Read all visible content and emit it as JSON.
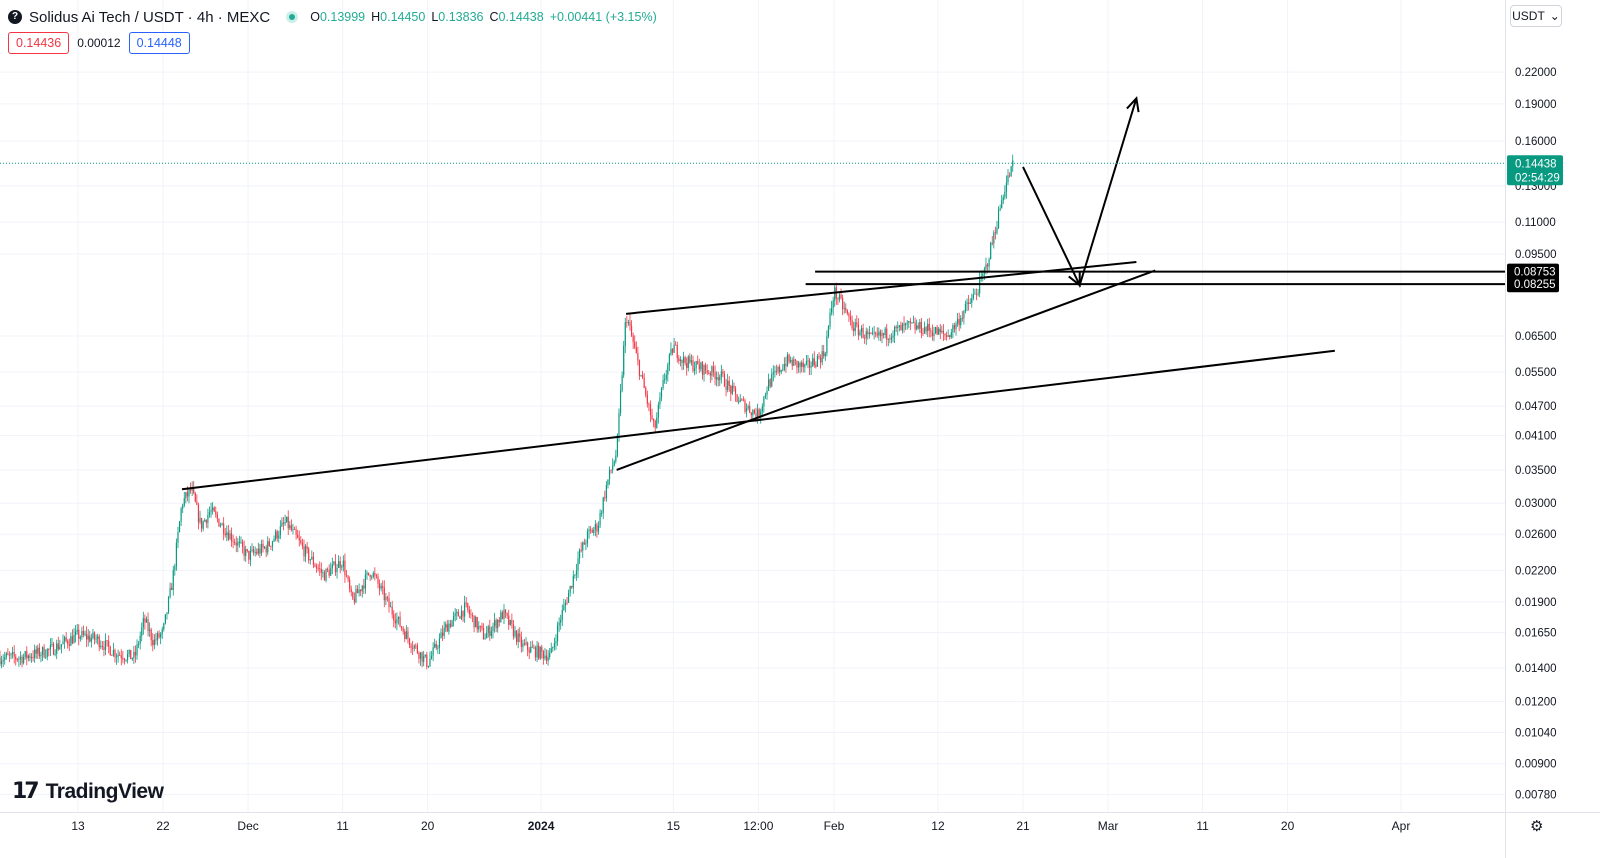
{
  "header": {
    "logo_glyph": "?",
    "symbol": "Solidus Ai Tech / USDT · 4h · MEXC",
    "ohlc": {
      "o_key": "O",
      "o": "0.13999",
      "h_key": "H",
      "h": "0.14450",
      "l_key": "L",
      "l": "0.13836",
      "c_key": "C",
      "c": "0.14438",
      "change": "+0.00441 (+3.15%)"
    },
    "sell_price": "0.14436",
    "spread": "0.00012",
    "buy_price": "0.14448"
  },
  "currency_button": {
    "label": "USDT",
    "icon": "chevron-down-icon"
  },
  "branding": {
    "mark": "17",
    "text": "TradingView"
  },
  "settings_icon": "gear-icon",
  "chart_data": {
    "type": "line",
    "description_type": "candlestick",
    "y_scale": "log",
    "ylim": [
      0.0072,
      0.28
    ],
    "y_ticks": [
      "0.22000",
      "0.19000",
      "0.16000",
      "0.13000",
      "0.11000",
      "0.09500",
      "0.06500",
      "0.05500",
      "0.04700",
      "0.04100",
      "0.03500",
      "0.03000",
      "0.02600",
      "0.02200",
      "0.01900",
      "0.01650",
      "0.01400",
      "0.01200",
      "0.01040",
      "0.00900",
      "0.00780"
    ],
    "x_ticks": [
      "13",
      "22",
      "Dec",
      "11",
      "20",
      "2024",
      "15",
      "12:00",
      "Feb",
      "12",
      "21",
      "Mar",
      "11",
      "20",
      "Apr"
    ],
    "x_tick_bold": [
      "2024"
    ],
    "series": [
      {
        "values": [
          [
            "2023-11-07",
            0.0147
          ],
          [
            "2023-11-10",
            0.0152
          ],
          [
            "2023-11-13",
            0.0163
          ],
          [
            "2023-11-15",
            0.016
          ],
          [
            "2023-11-17",
            0.015
          ],
          [
            "2023-11-19",
            0.0147
          ],
          [
            "2023-11-20",
            0.0175
          ],
          [
            "2023-11-21",
            0.0158
          ],
          [
            "2023-11-22",
            0.0165
          ],
          [
            "2023-11-23",
            0.021
          ],
          [
            "2023-11-24",
            0.03
          ],
          [
            "2023-11-25",
            0.032
          ],
          [
            "2023-11-26",
            0.027
          ],
          [
            "2023-11-27",
            0.029
          ],
          [
            "2023-11-29",
            0.026
          ],
          [
            "2023-12-01",
            0.0235
          ],
          [
            "2023-12-03",
            0.0245
          ],
          [
            "2023-12-05",
            0.0275
          ],
          [
            "2023-12-07",
            0.024
          ],
          [
            "2023-12-09",
            0.0215
          ],
          [
            "2023-12-11",
            0.023
          ],
          [
            "2023-12-12",
            0.019
          ],
          [
            "2023-12-14",
            0.022
          ],
          [
            "2023-12-16",
            0.0185
          ],
          [
            "2023-12-18",
            0.016
          ],
          [
            "2023-12-20",
            0.0143
          ],
          [
            "2023-12-22",
            0.017
          ],
          [
            "2023-12-24",
            0.0185
          ],
          [
            "2023-12-26",
            0.0162
          ],
          [
            "2023-12-28",
            0.018
          ],
          [
            "2023-12-30",
            0.0155
          ],
          [
            "2024-01-01",
            0.015
          ],
          [
            "2024-01-02",
            0.0148
          ],
          [
            "2024-01-03",
            0.0175
          ],
          [
            "2024-01-04",
            0.02
          ],
          [
            "2024-01-05",
            0.0235
          ],
          [
            "2024-01-06",
            0.026
          ],
          [
            "2024-01-07",
            0.027
          ],
          [
            "2024-01-08",
            0.033
          ],
          [
            "2024-01-09",
            0.038
          ],
          [
            "2024-01-10",
            0.072
          ],
          [
            "2024-01-11",
            0.06
          ],
          [
            "2024-01-12",
            0.05
          ],
          [
            "2024-01-13",
            0.042
          ],
          [
            "2024-01-14",
            0.053
          ],
          [
            "2024-01-15",
            0.062
          ],
          [
            "2024-01-16",
            0.058
          ],
          [
            "2024-01-18",
            0.056
          ],
          [
            "2024-01-20",
            0.054
          ],
          [
            "2024-01-22",
            0.048
          ],
          [
            "2024-01-24",
            0.045
          ],
          [
            "2024-01-25",
            0.052
          ],
          [
            "2024-01-27",
            0.058
          ],
          [
            "2024-01-29",
            0.056
          ],
          [
            "2024-01-31",
            0.06
          ],
          [
            "2024-02-01",
            0.08
          ],
          [
            "2024-02-02",
            0.074
          ],
          [
            "2024-02-03",
            0.068
          ],
          [
            "2024-02-05",
            0.064
          ],
          [
            "2024-02-07",
            0.066
          ],
          [
            "2024-02-09",
            0.068
          ],
          [
            "2024-02-11",
            0.067
          ],
          [
            "2024-02-13",
            0.065
          ],
          [
            "2024-02-14",
            0.069
          ],
          [
            "2024-02-15",
            0.074
          ],
          [
            "2024-02-16",
            0.079
          ],
          [
            "2024-02-17",
            0.088
          ],
          [
            "2024-02-18",
            0.105
          ],
          [
            "2024-02-19",
            0.128
          ],
          [
            "2024-02-20",
            0.1444
          ]
        ]
      }
    ],
    "current_price_label": {
      "value": "0.14438",
      "countdown": "02:54:29",
      "color": "#089981"
    },
    "levels": [
      {
        "value": "0.08753"
      },
      {
        "value": "0.08255"
      }
    ],
    "annotations": {
      "trendlines": [
        {
          "from": [
            "2023-11-24",
            0.032
          ],
          "to": [
            "2024-03-25",
            0.0607
          ]
        },
        {
          "from": [
            "2024-01-10",
            0.072
          ],
          "to": [
            "2024-03-04",
            0.0915
          ]
        },
        {
          "from": [
            "2024-01-09",
            0.035
          ],
          "to": [
            "2024-03-06",
            0.088
          ]
        }
      ],
      "level_segments": [
        {
          "from": [
            "2024-01-30",
            0.0875
          ],
          "to": [
            "2024-04-18",
            0.0875
          ]
        },
        {
          "from": [
            "2024-01-29",
            0.0826
          ],
          "to": [
            "2024-04-18",
            0.0826
          ]
        }
      ],
      "arrow_path": [
        [
          "2024-02-21",
          0.142
        ],
        [
          "2024-02-27",
          0.0822
        ],
        [
          "2024-03-04",
          0.195
        ]
      ]
    },
    "colors": {
      "up": "#089981",
      "down": "#f23645",
      "line": "#000000",
      "grid": "#f0f3fa"
    }
  }
}
